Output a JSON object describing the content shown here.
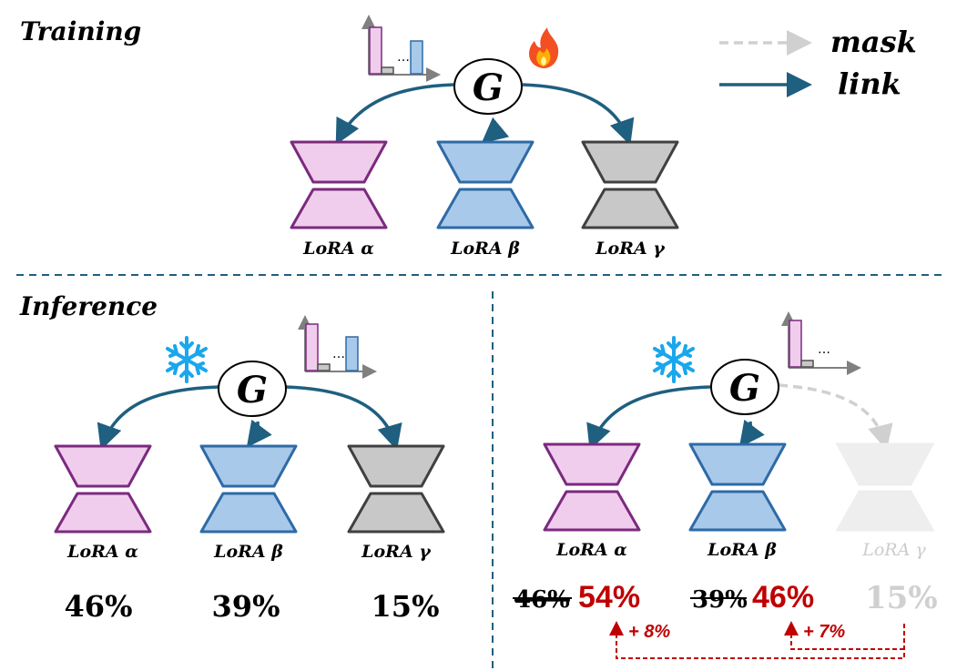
{
  "sections": {
    "training": "Training",
    "inference": "Inference"
  },
  "legend": {
    "mask": "mask",
    "link": "link"
  },
  "gate_label": "G",
  "icons": {
    "training_state": "fire-icon",
    "inference_state": "snowflake-icon"
  },
  "colors": {
    "link": "#1f5f80",
    "mask": "#d0d0d0",
    "alpha": "#7b2a7e",
    "alpha_fill": "#f0cdec",
    "beta": "#2e6aa6",
    "beta_fill": "#a9c9ea",
    "gamma": "#404040",
    "gamma_fill": "#c8c8c8",
    "highlight": "#c00000"
  },
  "training": {
    "loras": [
      "LoRA α",
      "LoRA β",
      "LoRA γ"
    ]
  },
  "inference_full": {
    "loras": [
      "LoRA α",
      "LoRA β",
      "LoRA γ"
    ],
    "weights": [
      "46%",
      "39%",
      "15%"
    ]
  },
  "inference_masked": {
    "loras": [
      "LoRA α",
      "LoRA β",
      "LoRA γ"
    ],
    "old_weights": [
      "46%",
      "39%"
    ],
    "new_weights": [
      "54%",
      "46%"
    ],
    "masked_weight": "15%",
    "deltas": [
      "+ 8%",
      "+ 7%"
    ]
  }
}
